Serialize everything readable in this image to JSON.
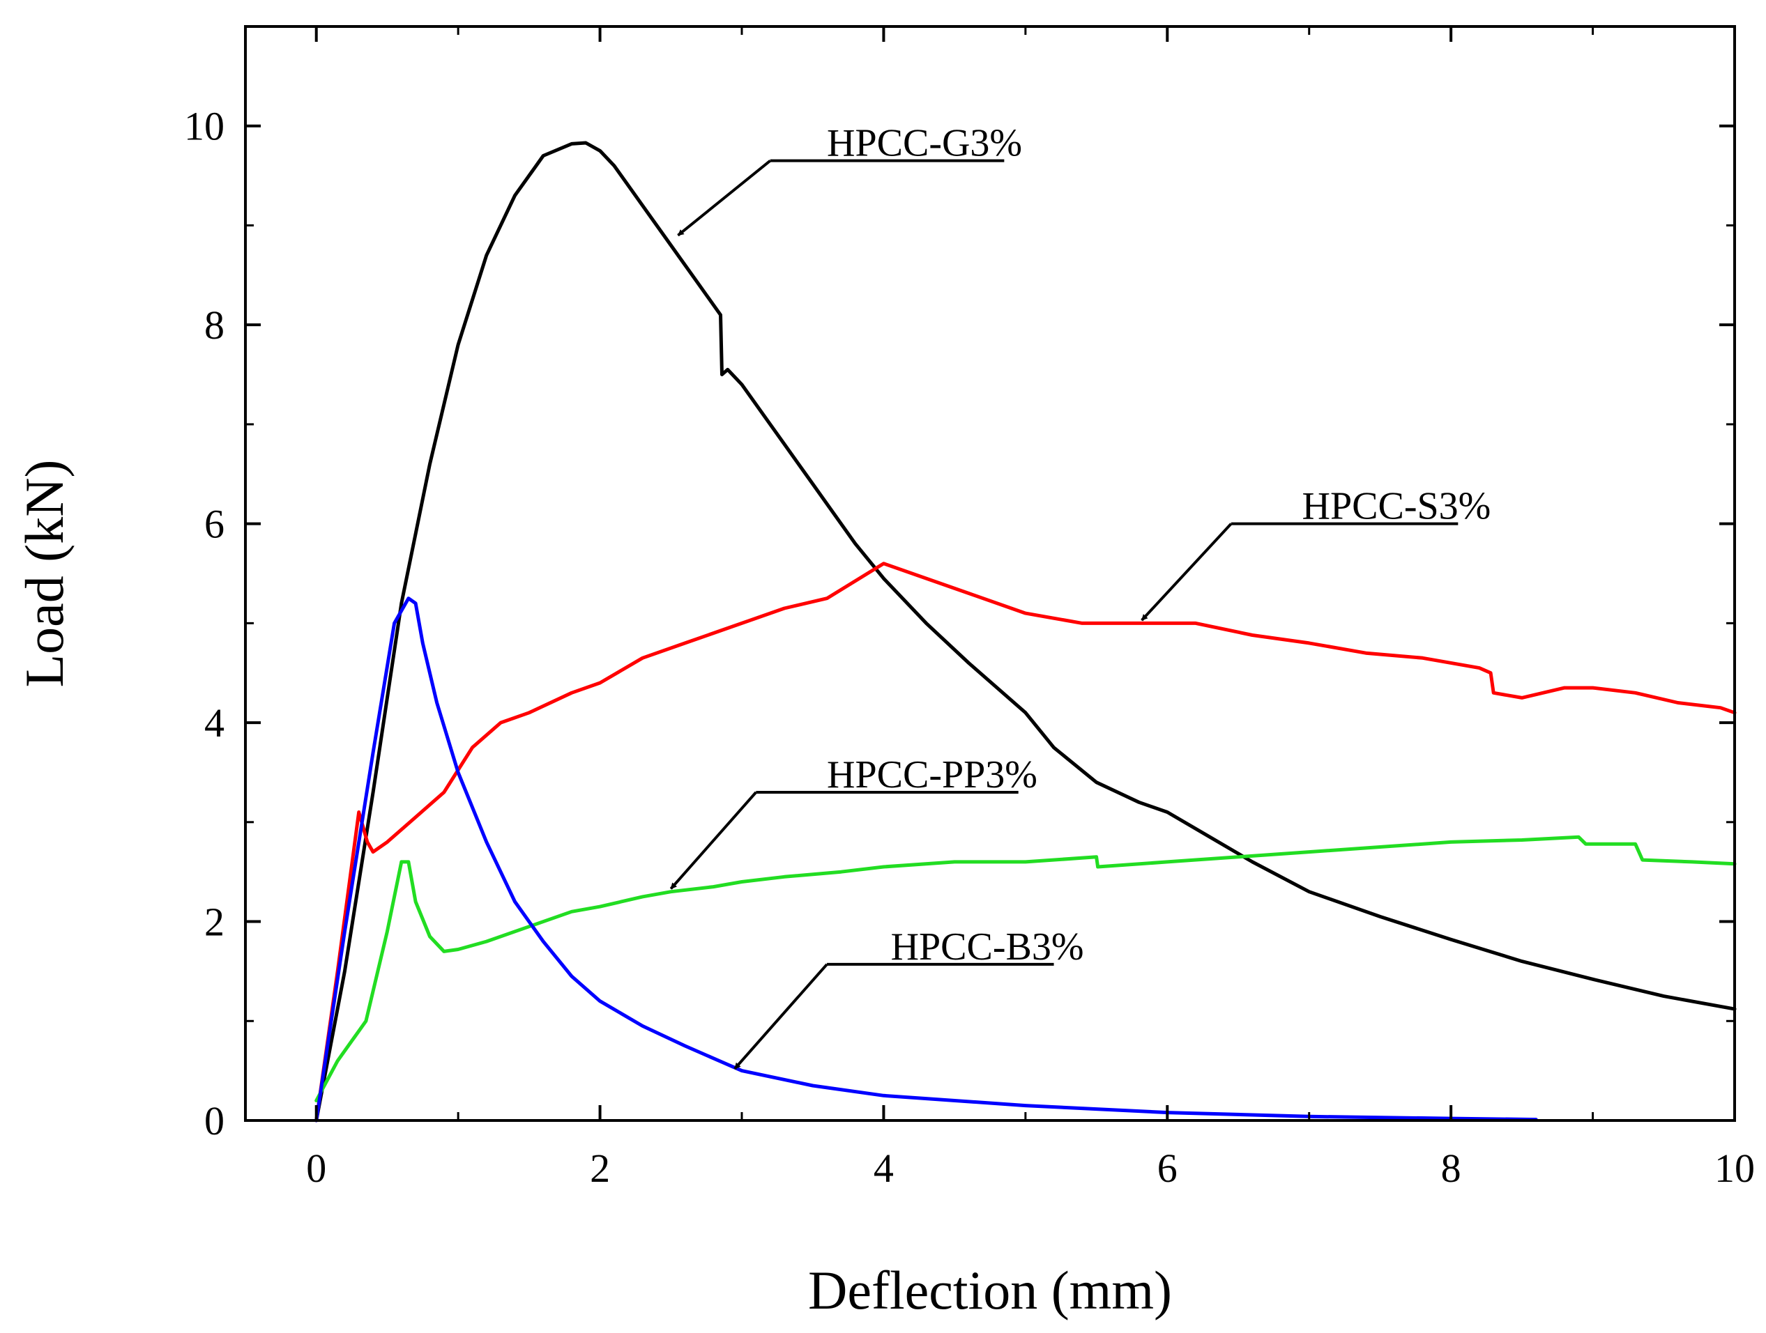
{
  "chart_data": {
    "type": "line",
    "title": "",
    "xlabel": "Deflection (mm)",
    "ylabel": "Load (kN)",
    "xlim": [
      -0.5,
      10
    ],
    "ylim": [
      0,
      11
    ],
    "xticks": [
      0,
      2,
      4,
      6,
      8,
      10
    ],
    "yticks": [
      0,
      2,
      4,
      6,
      8,
      10
    ],
    "xtick_labels": [
      "0",
      "2",
      "4",
      "6",
      "8",
      "10"
    ],
    "ytick_labels": [
      "0",
      "2",
      "4",
      "6",
      "8",
      "10"
    ],
    "grid": false,
    "legend": "annotations with arrows",
    "series": [
      {
        "name": "HPCC-G3%",
        "color": "#000000",
        "x": [
          0,
          0.2,
          0.4,
          0.6,
          0.8,
          1.0,
          1.2,
          1.4,
          1.6,
          1.8,
          1.9,
          2.0,
          2.1,
          2.3,
          2.5,
          2.7,
          2.85,
          2.86,
          2.9,
          3.0,
          3.2,
          3.5,
          3.8,
          4.0,
          4.3,
          4.6,
          4.8,
          5.0,
          5.2,
          5.5,
          5.8,
          6.0,
          6.3,
          6.6,
          7.0,
          7.5,
          8.0,
          8.5,
          9.0,
          9.5,
          10.0
        ],
        "y": [
          0,
          1.5,
          3.3,
          5.2,
          6.6,
          7.8,
          8.7,
          9.3,
          9.7,
          9.82,
          9.83,
          9.75,
          9.6,
          9.2,
          8.8,
          8.4,
          8.1,
          7.5,
          7.55,
          7.4,
          7.0,
          6.4,
          5.8,
          5.45,
          5.0,
          4.6,
          4.35,
          4.1,
          3.75,
          3.4,
          3.2,
          3.1,
          2.85,
          2.6,
          2.3,
          2.05,
          1.82,
          1.6,
          1.42,
          1.25,
          1.12
        ]
      },
      {
        "name": "HPCC-S3%",
        "color": "#ff0000",
        "x": [
          0,
          0.15,
          0.3,
          0.36,
          0.4,
          0.5,
          0.7,
          0.9,
          1.1,
          1.3,
          1.5,
          1.8,
          2.0,
          2.3,
          2.6,
          3.0,
          3.3,
          3.6,
          4.0,
          4.3,
          4.6,
          5.0,
          5.4,
          5.8,
          6.2,
          6.6,
          7.0,
          7.4,
          7.8,
          8.2,
          8.28,
          8.3,
          8.5,
          8.8,
          9.0,
          9.3,
          9.6,
          9.9,
          10.0
        ],
        "y": [
          0,
          1.5,
          3.1,
          2.8,
          2.7,
          2.8,
          3.05,
          3.3,
          3.75,
          4.0,
          4.1,
          4.3,
          4.4,
          4.65,
          4.8,
          5.0,
          5.15,
          5.25,
          5.6,
          5.45,
          5.3,
          5.1,
          5.0,
          5.0,
          5.0,
          4.88,
          4.8,
          4.7,
          4.65,
          4.55,
          4.5,
          4.3,
          4.25,
          4.35,
          4.35,
          4.3,
          4.2,
          4.15,
          4.1
        ]
      },
      {
        "name": "HPCC-PP3%",
        "color": "#22dd22",
        "x": [
          0,
          0.15,
          0.35,
          0.5,
          0.6,
          0.65,
          0.7,
          0.8,
          0.9,
          1.0,
          1.2,
          1.5,
          1.8,
          2.0,
          2.3,
          2.5,
          2.8,
          3.0,
          3.3,
          3.7,
          4.0,
          4.5,
          5.0,
          5.5,
          5.51,
          6.0,
          6.5,
          7.0,
          7.5,
          8.0,
          8.5,
          8.9,
          8.95,
          9.3,
          9.35,
          9.7,
          10.0
        ],
        "y": [
          0.2,
          0.6,
          1.0,
          1.9,
          2.6,
          2.6,
          2.2,
          1.85,
          1.7,
          1.72,
          1.8,
          1.95,
          2.1,
          2.15,
          2.25,
          2.3,
          2.35,
          2.4,
          2.45,
          2.5,
          2.55,
          2.6,
          2.6,
          2.65,
          2.55,
          2.6,
          2.65,
          2.7,
          2.75,
          2.8,
          2.82,
          2.85,
          2.78,
          2.78,
          2.62,
          2.6,
          2.58
        ]
      },
      {
        "name": "HPCC-B3%",
        "color": "#0000ff",
        "x": [
          0,
          0.2,
          0.4,
          0.55,
          0.65,
          0.7,
          0.75,
          0.85,
          1.0,
          1.2,
          1.4,
          1.6,
          1.8,
          2.0,
          2.3,
          2.6,
          3.0,
          3.5,
          4.0,
          5.0,
          6.0,
          7.0,
          8.0,
          8.6
        ],
        "y": [
          0,
          1.9,
          3.7,
          5.0,
          5.25,
          5.2,
          4.8,
          4.2,
          3.5,
          2.8,
          2.2,
          1.8,
          1.45,
          1.2,
          0.95,
          0.75,
          0.5,
          0.35,
          0.25,
          0.15,
          0.08,
          0.04,
          0.02,
          0.01
        ]
      }
    ],
    "annotations": [
      {
        "series": "HPCC-G3%",
        "text": "HPCC-G3%",
        "label_x": 3.6,
        "label_y": 9.7,
        "line_x1": 3.2,
        "line_x2": 4.85,
        "y_line": 9.65,
        "arrow_to_x": 2.55,
        "arrow_to_y": 8.9
      },
      {
        "series": "HPCC-S3%",
        "text": "HPCC-S3%",
        "label_x": 6.95,
        "label_y": 6.05,
        "line_x1": 6.45,
        "line_x2": 8.05,
        "y_line": 6.0,
        "arrow_to_x": 5.82,
        "arrow_to_y": 5.03
      },
      {
        "series": "HPCC-PP3%",
        "text": "HPCC-PP3%",
        "label_x": 3.6,
        "label_y": 3.35,
        "line_x1": 3.1,
        "line_x2": 4.95,
        "y_line": 3.3,
        "arrow_to_x": 2.5,
        "arrow_to_y": 2.33
      },
      {
        "series": "HPCC-B3%",
        "text": "HPCC-B3%",
        "label_x": 4.05,
        "label_y": 1.62,
        "line_x1": 3.6,
        "line_x2": 5.2,
        "y_line": 1.57,
        "arrow_to_x": 2.95,
        "arrow_to_y": 0.52
      }
    ]
  }
}
